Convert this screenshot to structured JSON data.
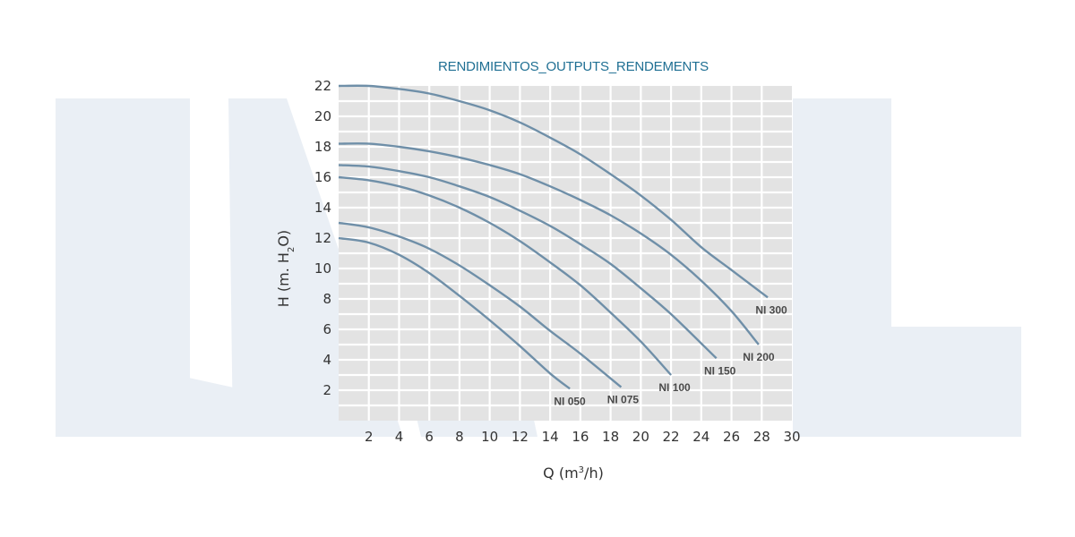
{
  "chart_data": {
    "type": "line",
    "title": "RENDIMIENTOS_OUTPUTS_RENDEMENTS",
    "xlabel": "Q (m3/h)",
    "ylabel": "H (m. H2O)",
    "xlim": [
      0,
      30
    ],
    "ylim": [
      0,
      22
    ],
    "xticks": [
      2,
      4,
      6,
      8,
      10,
      12,
      14,
      16,
      18,
      20,
      22,
      24,
      26,
      28,
      30
    ],
    "yticks": [
      2,
      4,
      6,
      8,
      10,
      12,
      14,
      16,
      18,
      20,
      22
    ],
    "grid": true,
    "series": [
      {
        "name": "NI 050",
        "x": [
          0,
          2,
          4,
          6,
          8,
          10,
          12,
          14,
          15.3
        ],
        "y": [
          12.0,
          11.7,
          10.9,
          9.7,
          8.2,
          6.6,
          4.9,
          3.1,
          2.1
        ]
      },
      {
        "name": "NI 075",
        "x": [
          0,
          2,
          4,
          6,
          8,
          10,
          12,
          14,
          16,
          18.7
        ],
        "y": [
          13.0,
          12.7,
          12.1,
          11.3,
          10.2,
          8.9,
          7.5,
          5.9,
          4.4,
          2.2
        ]
      },
      {
        "name": "NI 100",
        "x": [
          0,
          2,
          4,
          6,
          8,
          10,
          12,
          14,
          16,
          18,
          20,
          22
        ],
        "y": [
          16.0,
          15.8,
          15.4,
          14.8,
          14.0,
          13.0,
          11.8,
          10.4,
          8.9,
          7.1,
          5.2,
          3.0
        ]
      },
      {
        "name": "NI 150",
        "x": [
          0,
          2,
          4,
          6,
          8,
          10,
          12,
          14,
          16,
          18,
          20,
          22,
          25
        ],
        "y": [
          16.8,
          16.7,
          16.4,
          16.0,
          15.4,
          14.7,
          13.8,
          12.8,
          11.6,
          10.3,
          8.7,
          7.0,
          4.1
        ]
      },
      {
        "name": "NI 200",
        "x": [
          0,
          2,
          4,
          6,
          8,
          10,
          12,
          14,
          16,
          18,
          20,
          22,
          24,
          26,
          27.8
        ],
        "y": [
          18.2,
          18.2,
          18.0,
          17.7,
          17.3,
          16.8,
          16.2,
          15.4,
          14.5,
          13.5,
          12.3,
          10.9,
          9.2,
          7.2,
          5.0
        ]
      },
      {
        "name": "NI 300",
        "x": [
          0,
          2,
          4,
          6,
          8,
          10,
          12,
          14,
          16,
          18,
          20,
          22,
          24,
          26,
          28.4
        ],
        "y": [
          22.0,
          22.0,
          21.8,
          21.5,
          21.0,
          20.4,
          19.6,
          18.6,
          17.5,
          16.2,
          14.8,
          13.2,
          11.4,
          9.9,
          8.1
        ]
      }
    ]
  },
  "colors": {
    "title": "#1f6f93",
    "curve": "#6f8fa8",
    "grid_bg": "#e3e3e3",
    "grid_line": "#ffffff",
    "watermark": "#eaeff5"
  },
  "axis_text": {
    "x_main": "Q (m",
    "x_sup": "3",
    "x_end": "/h)",
    "y_main": "H (m. H",
    "y_sub": "2",
    "y_end": "O)"
  }
}
